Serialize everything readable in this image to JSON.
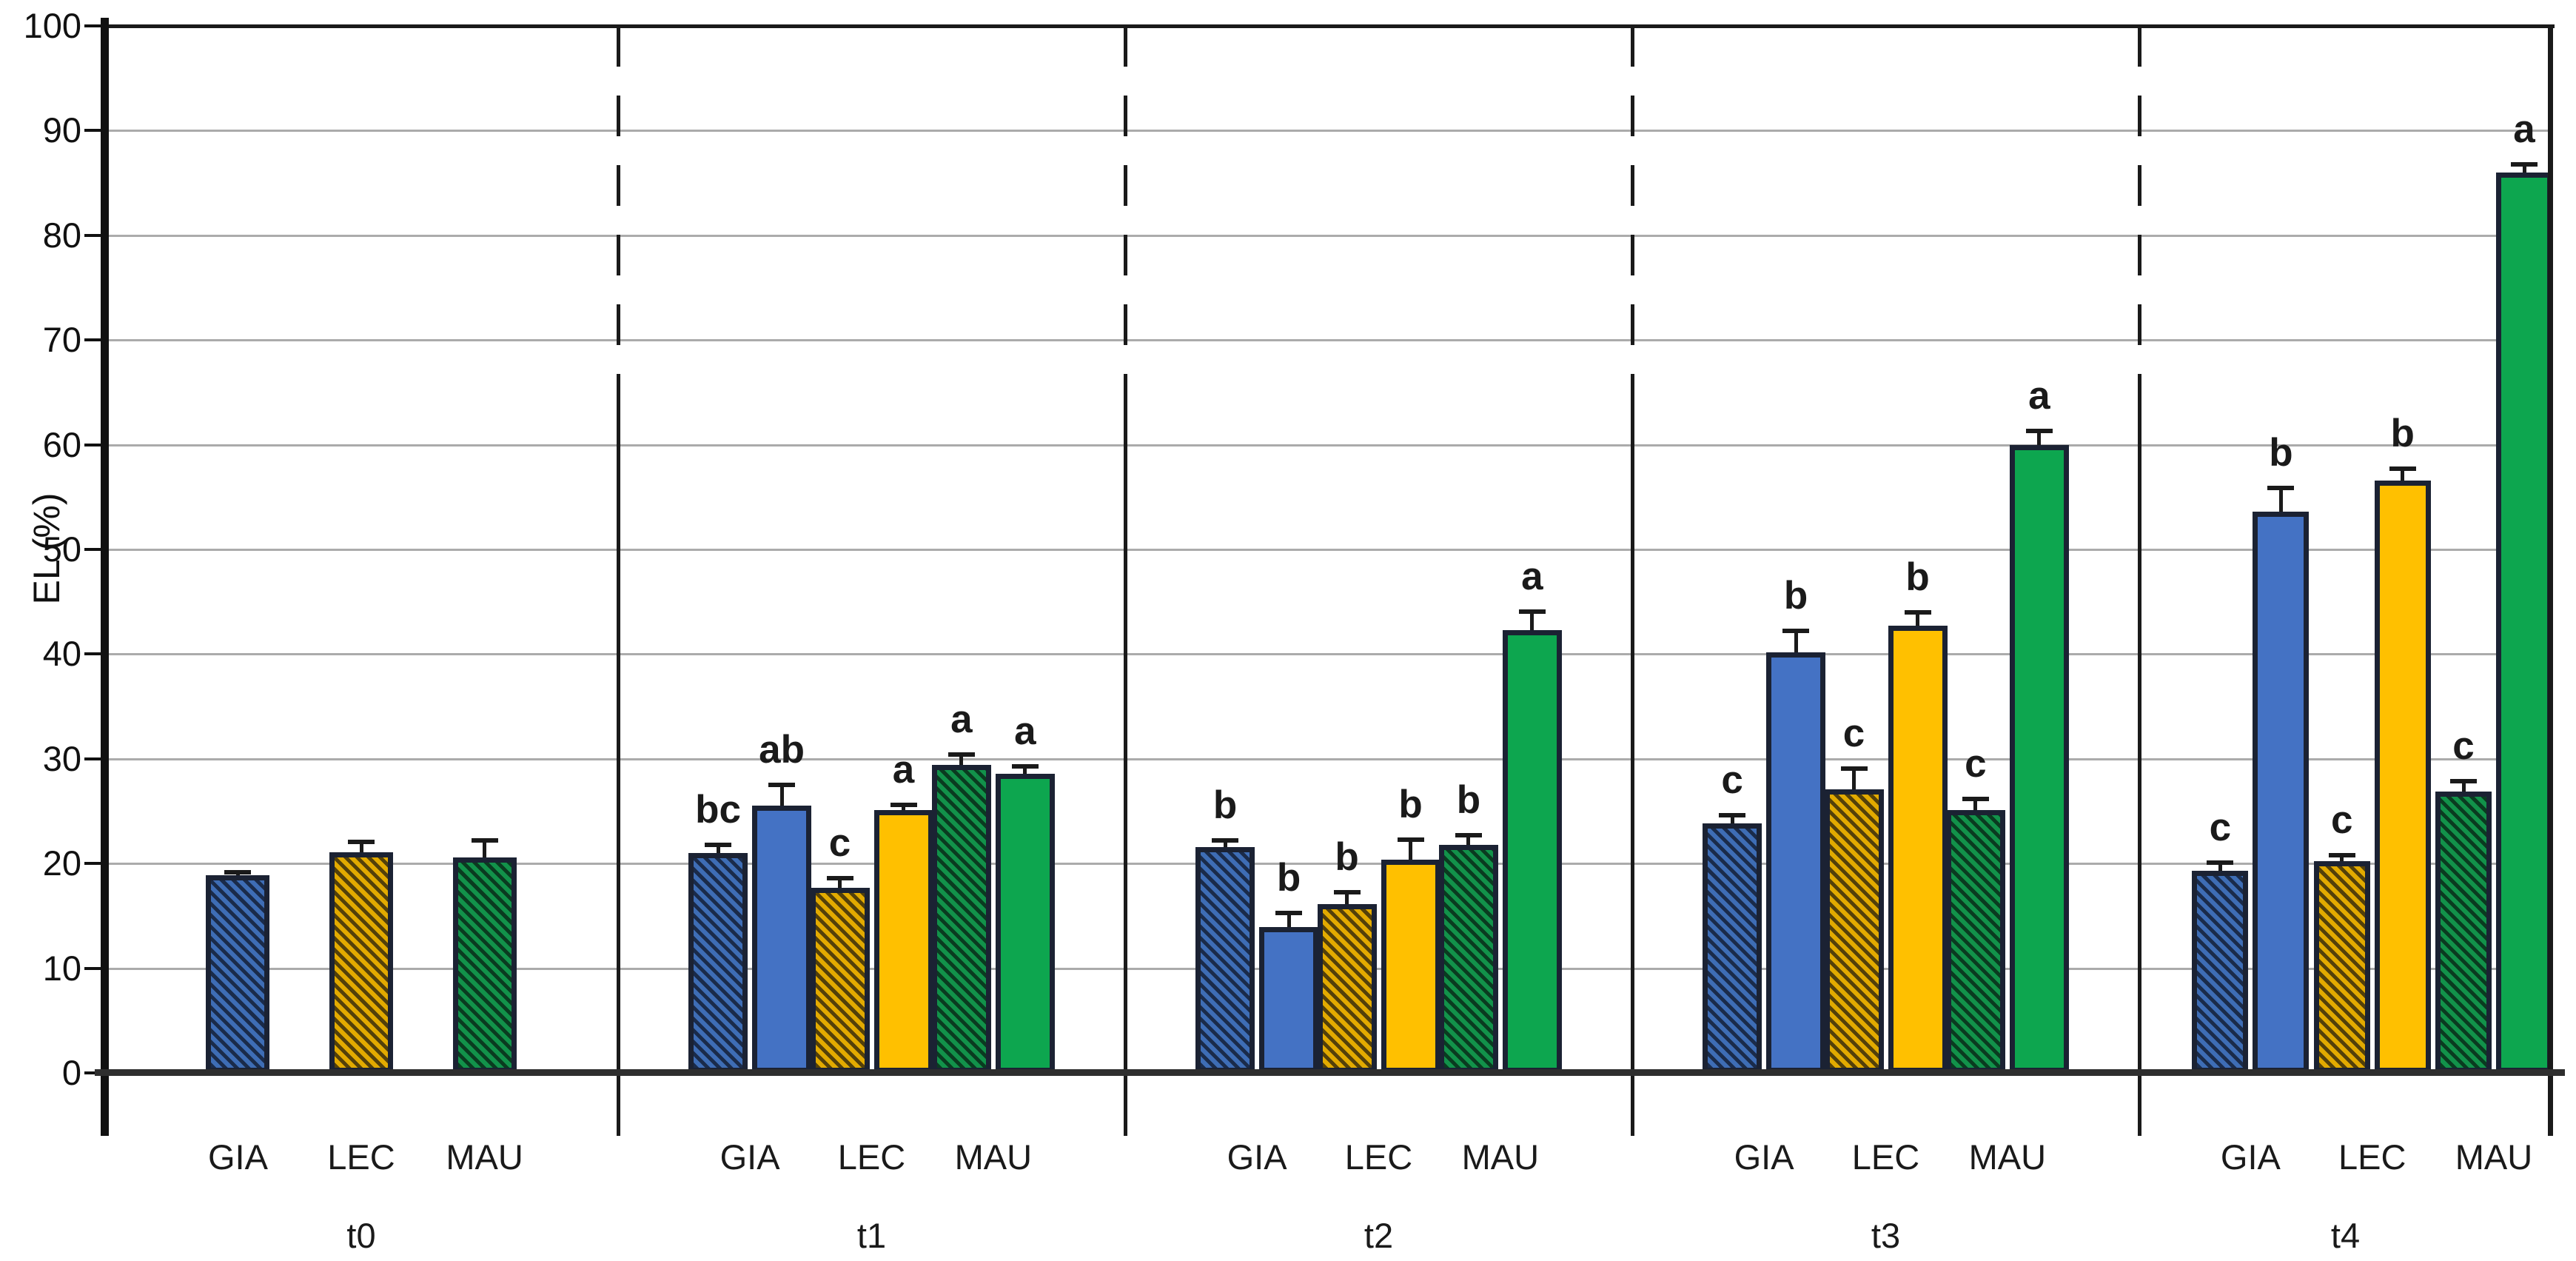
{
  "chart_data": {
    "type": "bar",
    "title": "",
    "ylabel": "EL (%)",
    "xlabel": "",
    "ylim": [
      0,
      100
    ],
    "y_tick_step": 10,
    "y_tick_labels": [
      "0",
      "10",
      "20",
      "30",
      "40",
      "50",
      "60",
      "70",
      "80",
      "90",
      "100"
    ],
    "grid": true,
    "legend_position": "none",
    "cultivars": [
      "GIA",
      "LEC",
      "MAU"
    ],
    "series_types": [
      "hatched",
      "solid"
    ],
    "panels": [
      {
        "label": "t0",
        "groups": [
          {
            "cultivar": "GIA",
            "bars": [
              {
                "type": "hatched",
                "value": 18.9,
                "error": 0.5,
                "letter": ""
              }
            ]
          },
          {
            "cultivar": "LEC",
            "bars": [
              {
                "type": "hatched",
                "value": 21.1,
                "error": 1.2,
                "letter": ""
              }
            ]
          },
          {
            "cultivar": "MAU",
            "bars": [
              {
                "type": "hatched",
                "value": 20.6,
                "error": 1.8,
                "letter": ""
              }
            ]
          }
        ]
      },
      {
        "label": "t1",
        "groups": [
          {
            "cultivar": "GIA",
            "bars": [
              {
                "type": "hatched",
                "value": 21.0,
                "error": 1.0,
                "letter": "bc"
              },
              {
                "type": "solid",
                "value": 25.5,
                "error": 2.2,
                "letter": "ab"
              }
            ]
          },
          {
            "cultivar": "LEC",
            "bars": [
              {
                "type": "hatched",
                "value": 17.7,
                "error": 1.1,
                "letter": "c"
              },
              {
                "type": "solid",
                "value": 25.1,
                "error": 0.7,
                "letter": "a"
              }
            ]
          },
          {
            "cultivar": "MAU",
            "bars": [
              {
                "type": "hatched",
                "value": 29.4,
                "error": 1.2,
                "letter": "a"
              },
              {
                "type": "solid",
                "value": 28.6,
                "error": 0.9,
                "letter": "a"
              }
            ]
          }
        ]
      },
      {
        "label": "t2",
        "groups": [
          {
            "cultivar": "GIA",
            "bars": [
              {
                "type": "hatched",
                "value": 21.6,
                "error": 0.8,
                "letter": "b"
              },
              {
                "type": "solid",
                "value": 13.9,
                "error": 1.6,
                "letter": "b"
              }
            ]
          },
          {
            "cultivar": "LEC",
            "bars": [
              {
                "type": "hatched",
                "value": 16.1,
                "error": 1.4,
                "letter": "b"
              },
              {
                "type": "solid",
                "value": 20.4,
                "error": 2.1,
                "letter": "b"
              }
            ]
          },
          {
            "cultivar": "MAU",
            "bars": [
              {
                "type": "hatched",
                "value": 21.8,
                "error": 1.1,
                "letter": "b"
              },
              {
                "type": "solid",
                "value": 42.3,
                "error": 2.0,
                "letter": "a"
              }
            ]
          }
        ]
      },
      {
        "label": "t3",
        "groups": [
          {
            "cultivar": "GIA",
            "bars": [
              {
                "type": "hatched",
                "value": 23.8,
                "error": 1.0,
                "letter": "c"
              },
              {
                "type": "solid",
                "value": 40.2,
                "error": 2.2,
                "letter": "b"
              }
            ]
          },
          {
            "cultivar": "LEC",
            "bars": [
              {
                "type": "hatched",
                "value": 27.1,
                "error": 2.2,
                "letter": "c"
              },
              {
                "type": "solid",
                "value": 42.7,
                "error": 1.5,
                "letter": "b"
              }
            ]
          },
          {
            "cultivar": "MAU",
            "bars": [
              {
                "type": "hatched",
                "value": 25.1,
                "error": 1.3,
                "letter": "c"
              },
              {
                "type": "solid",
                "value": 60.0,
                "error": 1.5,
                "letter": "a"
              }
            ]
          }
        ]
      },
      {
        "label": "t4",
        "groups": [
          {
            "cultivar": "GIA",
            "bars": [
              {
                "type": "hatched",
                "value": 19.3,
                "error": 1.0,
                "letter": "c"
              },
              {
                "type": "solid",
                "value": 53.6,
                "error": 2.5,
                "letter": "b"
              }
            ]
          },
          {
            "cultivar": "LEC",
            "bars": [
              {
                "type": "hatched",
                "value": 20.2,
                "error": 0.8,
                "letter": "c"
              },
              {
                "type": "solid",
                "value": 56.6,
                "error": 1.3,
                "letter": "b"
              }
            ]
          },
          {
            "cultivar": "MAU",
            "bars": [
              {
                "type": "hatched",
                "value": 26.9,
                "error": 1.2,
                "letter": "c"
              },
              {
                "type": "solid",
                "value": 86.0,
                "error": 1.0,
                "letter": "a"
              }
            ]
          }
        ]
      }
    ],
    "style": {
      "bar_border_color": "#1b2233",
      "error_bar_color": "#1a1a1a",
      "gridline_color": "#ababab",
      "axis_color": "#111111",
      "separator_color": "#1a1a1a",
      "cultivar_colors": {
        "GIA": {
          "solid": "#4472c4",
          "hatch_base": "#3e6db5",
          "hatch_stripe": "#1a2b4a"
        },
        "LEC": {
          "solid": "#ffc000",
          "hatch_base": "#e2aa00",
          "hatch_stripe": "#53400a"
        },
        "MAU": {
          "solid": "#0da64f",
          "hatch_base": "#12924a",
          "hatch_stripe": "#0a3b20"
        }
      }
    }
  }
}
